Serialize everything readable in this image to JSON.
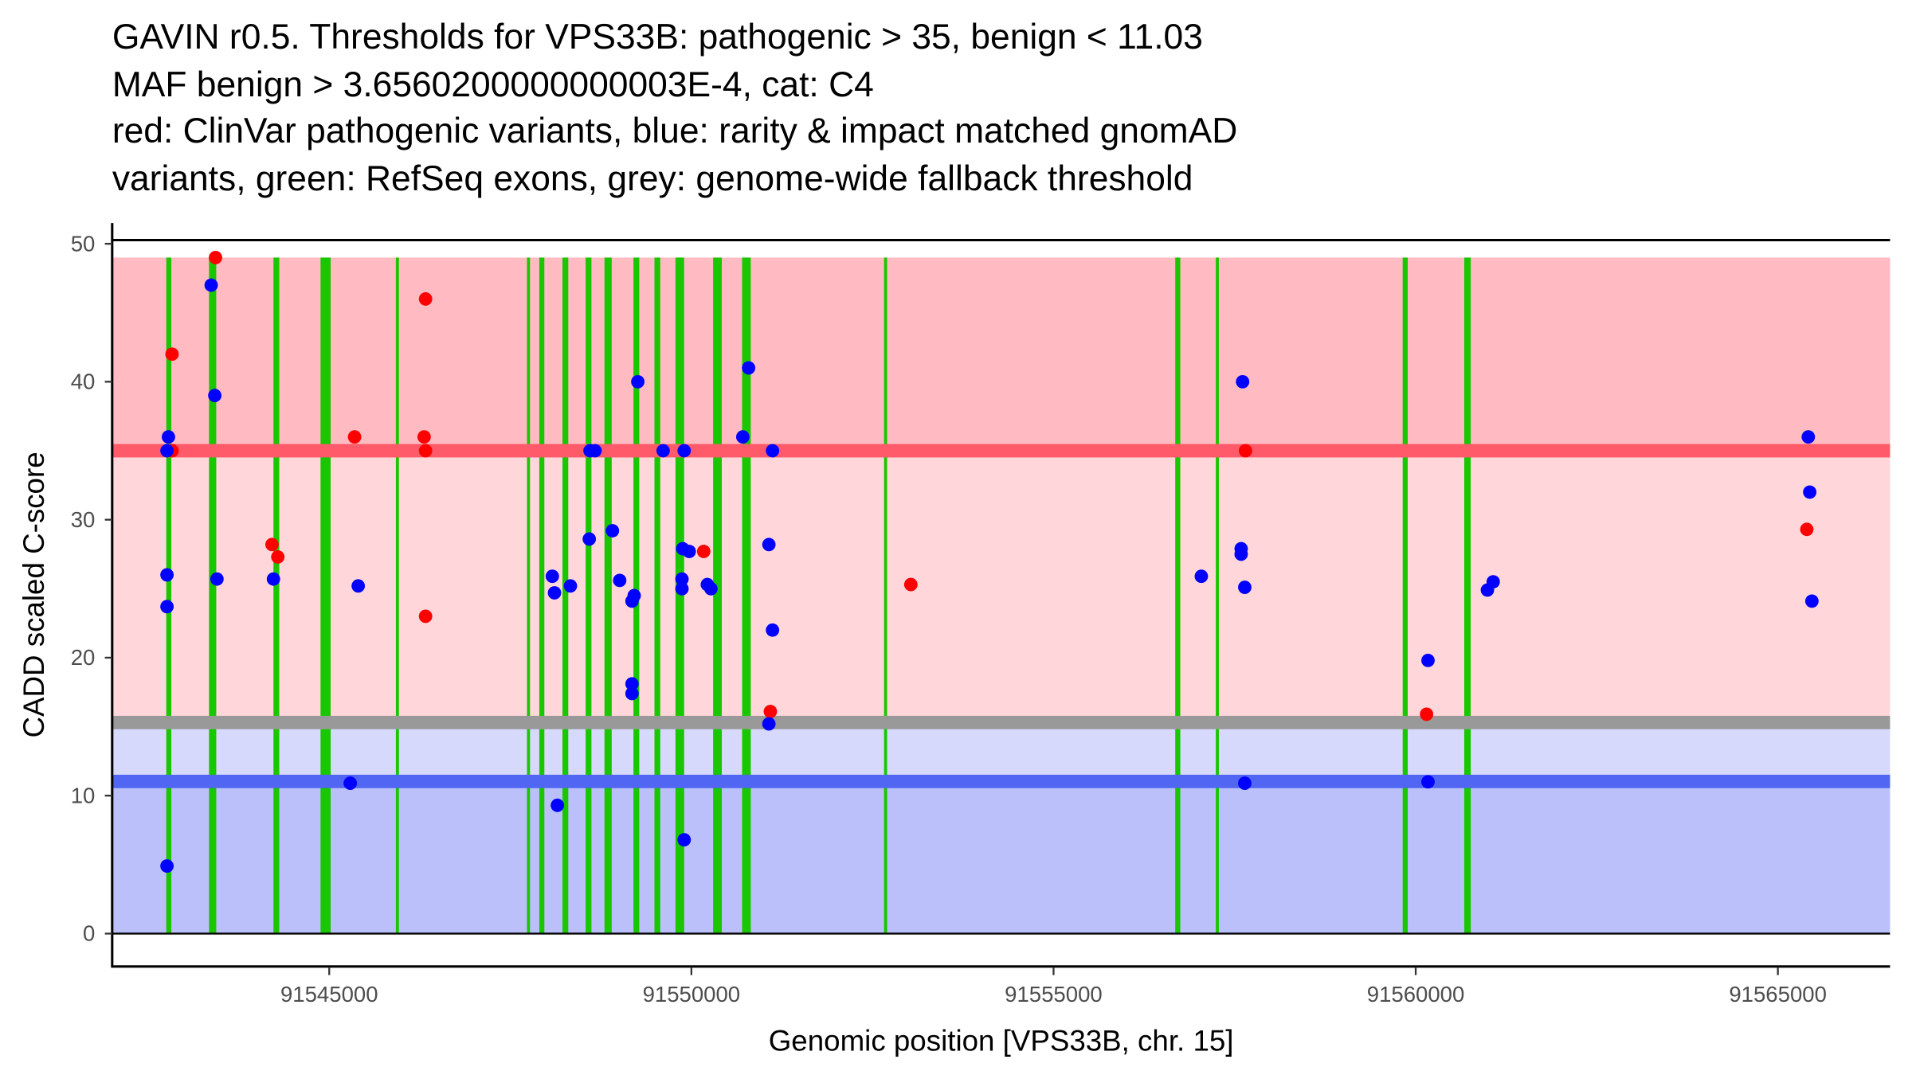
{
  "chart_data": {
    "type": "scatter",
    "title_lines": [
      "GAVIN r0.5. Thresholds for VPS33B: pathogenic > 35, benign < 11.03",
      "MAF benign > 3.6560200000000003E-4, cat: C4",
      "red: ClinVar pathogenic variants, blue: rarity & impact matched gnomAD",
      "variants, green: RefSeq exons, grey: genome-wide fallback threshold"
    ],
    "xlabel": "Genomic position [VPS33B, chr. 15]",
    "ylabel": "CADD scaled C-score",
    "xlim": [
      91541300,
      91565900
    ],
    "ylim": [
      -2.5,
      51.5
    ],
    "xticks": [
      91545000,
      91550000,
      91555000,
      91560000,
      91565000
    ],
    "xtick_labels": [
      "91545000",
      "91550000",
      "91555000",
      "91560000",
      "91565000"
    ],
    "yticks": [
      0,
      10,
      20,
      30,
      40,
      50
    ],
    "ytick_labels": [
      "0",
      "10",
      "20",
      "30",
      "40",
      "50"
    ],
    "grid": false,
    "colors": {
      "pathogenic_band": "#FFBBC1",
      "pathogenic_line": "#FF5A69",
      "mid_band": "#FFD7DB",
      "fallback_line": "#999999",
      "light_benign_band": "#D7D9FC",
      "benign_line": "#5166F2",
      "benign_band": "#BBC0FA",
      "exon": "#1AC600",
      "clinvar": "#FF0000",
      "gnomad": "#0000FF"
    },
    "bands": [
      {
        "name": "pathogenic-region",
        "from": 35,
        "to": 49,
        "color_key": "pathogenic_band"
      },
      {
        "name": "intermediate-region",
        "from": 15.3,
        "to": 35,
        "color_key": "mid_band"
      },
      {
        "name": "fallback-benign-region",
        "from": 11.03,
        "to": 15.3,
        "color_key": "light_benign_band"
      },
      {
        "name": "benign-region",
        "from": 0,
        "to": 11.03,
        "color_key": "benign_band"
      }
    ],
    "threshold_lines": [
      {
        "name": "pathogenic-threshold",
        "value": 35,
        "color_key": "pathogenic_line"
      },
      {
        "name": "genome-wide-fallback-threshold",
        "value": 15.3,
        "color_key": "fallback_line"
      },
      {
        "name": "benign-threshold",
        "value": 11.03,
        "color_key": "benign_line"
      }
    ],
    "exons": [
      {
        "start": 91542750,
        "end": 91542820
      },
      {
        "start": 91543340,
        "end": 91543440
      },
      {
        "start": 91544230,
        "end": 91544310
      },
      {
        "start": 91544880,
        "end": 91545020
      },
      {
        "start": 91545920,
        "end": 91545960
      },
      {
        "start": 91547730,
        "end": 91547770
      },
      {
        "start": 91547900,
        "end": 91547970
      },
      {
        "start": 91548220,
        "end": 91548300
      },
      {
        "start": 91548540,
        "end": 91548620
      },
      {
        "start": 91548800,
        "end": 91548900
      },
      {
        "start": 91549200,
        "end": 91549280
      },
      {
        "start": 91549490,
        "end": 91549570
      },
      {
        "start": 91549780,
        "end": 91549900
      },
      {
        "start": 91550300,
        "end": 91550420
      },
      {
        "start": 91550700,
        "end": 91550820
      },
      {
        "start": 91552660,
        "end": 91552700
      },
      {
        "start": 91556680,
        "end": 91556750
      },
      {
        "start": 91557240,
        "end": 91557280
      },
      {
        "start": 91559820,
        "end": 91559890
      },
      {
        "start": 91560670,
        "end": 91560760
      }
    ],
    "series": [
      {
        "name": "ClinVar pathogenic variants",
        "color_key": "clinvar",
        "points": [
          {
            "x": 91542830,
            "y": 42
          },
          {
            "x": 91542830,
            "y": 35
          },
          {
            "x": 91543430,
            "y": 49
          },
          {
            "x": 91544210,
            "y": 28.2
          },
          {
            "x": 91544290,
            "y": 27.3
          },
          {
            "x": 91545350,
            "y": 36
          },
          {
            "x": 91546330,
            "y": 46
          },
          {
            "x": 91546310,
            "y": 36
          },
          {
            "x": 91546330,
            "y": 35
          },
          {
            "x": 91546330,
            "y": 23
          },
          {
            "x": 91550170,
            "y": 27.7
          },
          {
            "x": 91551090,
            "y": 16.1
          },
          {
            "x": 91553030,
            "y": 25.3
          },
          {
            "x": 91557650,
            "y": 35
          },
          {
            "x": 91560150,
            "y": 15.9
          },
          {
            "x": 91565400,
            "y": 29.3
          }
        ]
      },
      {
        "name": "rarity & impact matched gnomAD variants",
        "color_key": "gnomad",
        "points": [
          {
            "x": 91542760,
            "y": 35
          },
          {
            "x": 91542780,
            "y": 36
          },
          {
            "x": 91542760,
            "y": 26
          },
          {
            "x": 91542760,
            "y": 23.7
          },
          {
            "x": 91542760,
            "y": 4.9
          },
          {
            "x": 91543370,
            "y": 47
          },
          {
            "x": 91543420,
            "y": 39
          },
          {
            "x": 91543450,
            "y": 25.7
          },
          {
            "x": 91544230,
            "y": 25.7
          },
          {
            "x": 91545400,
            "y": 25.2
          },
          {
            "x": 91545290,
            "y": 10.9
          },
          {
            "x": 91548080,
            "y": 25.9
          },
          {
            "x": 91548110,
            "y": 24.7
          },
          {
            "x": 91548150,
            "y": 9.3
          },
          {
            "x": 91548330,
            "y": 25.2
          },
          {
            "x": 91548590,
            "y": 28.6
          },
          {
            "x": 91548600,
            "y": 35
          },
          {
            "x": 91548670,
            "y": 35
          },
          {
            "x": 91548910,
            "y": 29.2
          },
          {
            "x": 91549010,
            "y": 25.6
          },
          {
            "x": 91549180,
            "y": 24.1
          },
          {
            "x": 91549210,
            "y": 24.5
          },
          {
            "x": 91549180,
            "y": 18.1
          },
          {
            "x": 91549180,
            "y": 17.4
          },
          {
            "x": 91549260,
            "y": 40
          },
          {
            "x": 91549610,
            "y": 35
          },
          {
            "x": 91549900,
            "y": 35
          },
          {
            "x": 91549880,
            "y": 27.9
          },
          {
            "x": 91549970,
            "y": 27.7
          },
          {
            "x": 91549870,
            "y": 25.7
          },
          {
            "x": 91549870,
            "y": 25
          },
          {
            "x": 91549900,
            "y": 6.8
          },
          {
            "x": 91550220,
            "y": 25.3
          },
          {
            "x": 91550270,
            "y": 25
          },
          {
            "x": 91550710,
            "y": 36
          },
          {
            "x": 91550790,
            "y": 41
          },
          {
            "x": 91551070,
            "y": 28.2
          },
          {
            "x": 91551070,
            "y": 15.2
          },
          {
            "x": 91551120,
            "y": 35
          },
          {
            "x": 91551120,
            "y": 22
          },
          {
            "x": 91557040,
            "y": 25.9
          },
          {
            "x": 91557610,
            "y": 40
          },
          {
            "x": 91557590,
            "y": 27.9
          },
          {
            "x": 91557590,
            "y": 27.5
          },
          {
            "x": 91557640,
            "y": 25.1
          },
          {
            "x": 91557640,
            "y": 10.9
          },
          {
            "x": 91560170,
            "y": 19.8
          },
          {
            "x": 91560170,
            "y": 11
          },
          {
            "x": 91560990,
            "y": 24.9
          },
          {
            "x": 91561070,
            "y": 25.5
          },
          {
            "x": 91565420,
            "y": 36
          },
          {
            "x": 91565440,
            "y": 32
          },
          {
            "x": 91565470,
            "y": 24.1
          }
        ]
      }
    ]
  }
}
